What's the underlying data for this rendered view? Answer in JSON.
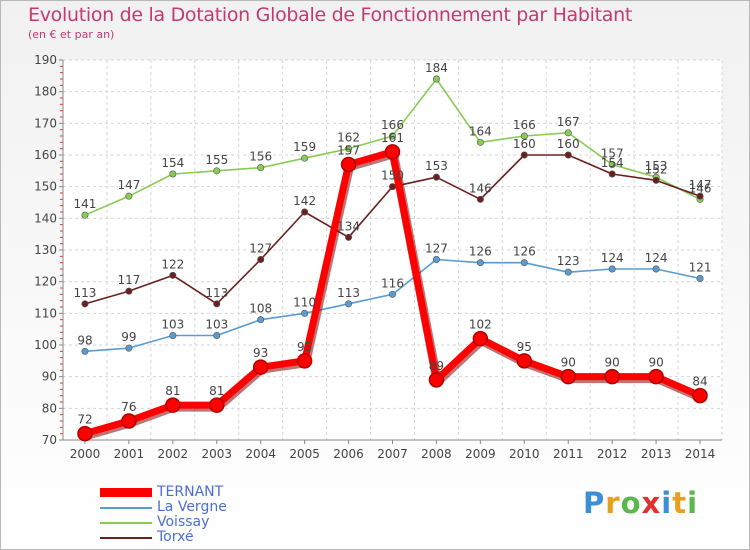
{
  "title": "Evolution de la Dotation Globale de Fonctionnement par Habitant",
  "subtitle": "(en € et par an)",
  "logo": {
    "text": "Proxiti",
    "letters": [
      {
        "ch": "P",
        "color": "#3a8fd8"
      },
      {
        "ch": "r",
        "color": "#e8a020"
      },
      {
        "ch": "o",
        "color": "#5ab84a"
      },
      {
        "ch": "x",
        "color": "#e03030"
      },
      {
        "ch": "i",
        "color": "#3a8fd8"
      },
      {
        "ch": "t",
        "color": "#e8a020"
      },
      {
        "ch": "i",
        "color": "#5ab84a"
      }
    ]
  },
  "chart_data": {
    "type": "line",
    "title": "Evolution de la Dotation Globale de Fonctionnement par Habitant",
    "subtitle": "(en € et par an)",
    "x": [
      "2000",
      "2001",
      "2002",
      "2003",
      "2004",
      "2005",
      "2006",
      "2007",
      "2008",
      "2009",
      "2010",
      "2011",
      "2012",
      "2013",
      "2014"
    ],
    "ylim": [
      70,
      190
    ],
    "yticks": [
      70,
      80,
      90,
      100,
      110,
      120,
      130,
      140,
      150,
      160,
      170,
      180,
      190
    ],
    "ytick_labels": [
      "70",
      "80",
      "90",
      "100",
      "110",
      "120",
      "130",
      "140",
      "150",
      "160",
      "170",
      "180",
      "190"
    ],
    "grid": true,
    "legend_position": "bottom-left",
    "series": [
      {
        "name": "TERNANT",
        "color": "#ff0000",
        "emphasis": true,
        "values": [
          72,
          76,
          81,
          81,
          93,
          95,
          157,
          161,
          89,
          102,
          95,
          90,
          90,
          90,
          84
        ],
        "labels": [
          "72",
          "76",
          "81",
          "81",
          "93",
          "95",
          "157",
          "161",
          "89",
          "102",
          "95",
          "90",
          "90",
          "90",
          "84"
        ]
      },
      {
        "name": "La Vergne",
        "color": "#5a9bd4",
        "emphasis": false,
        "values": [
          98,
          99,
          103,
          103,
          108,
          110,
          113,
          116,
          127,
          126,
          126,
          123,
          124,
          124,
          121
        ],
        "labels": [
          "98",
          "99",
          "103",
          "103",
          "108",
          "110",
          "113",
          "116",
          "127",
          "126",
          "126",
          "123",
          "124",
          "124",
          "121"
        ]
      },
      {
        "name": "Voissay",
        "color": "#88cc55",
        "emphasis": false,
        "values": [
          141,
          147,
          154,
          155,
          156,
          159,
          162,
          166,
          184,
          164,
          166,
          167,
          157,
          153,
          146
        ],
        "labels": [
          "141",
          "147",
          "154",
          "155",
          "156",
          "159",
          "162",
          "166",
          "184",
          "164",
          "166",
          "167",
          "157",
          "153",
          "146"
        ]
      },
      {
        "name": "Torxé",
        "color": "#6b2020",
        "emphasis": false,
        "values": [
          113,
          117,
          122,
          113,
          127,
          142,
          134,
          150,
          153,
          146,
          160,
          160,
          154,
          152,
          147
        ],
        "labels": [
          "113",
          "117",
          "122",
          "113",
          "127",
          "142",
          "134",
          "150",
          "153",
          "146",
          "160",
          "160",
          "154",
          "152",
          "147"
        ]
      }
    ]
  }
}
